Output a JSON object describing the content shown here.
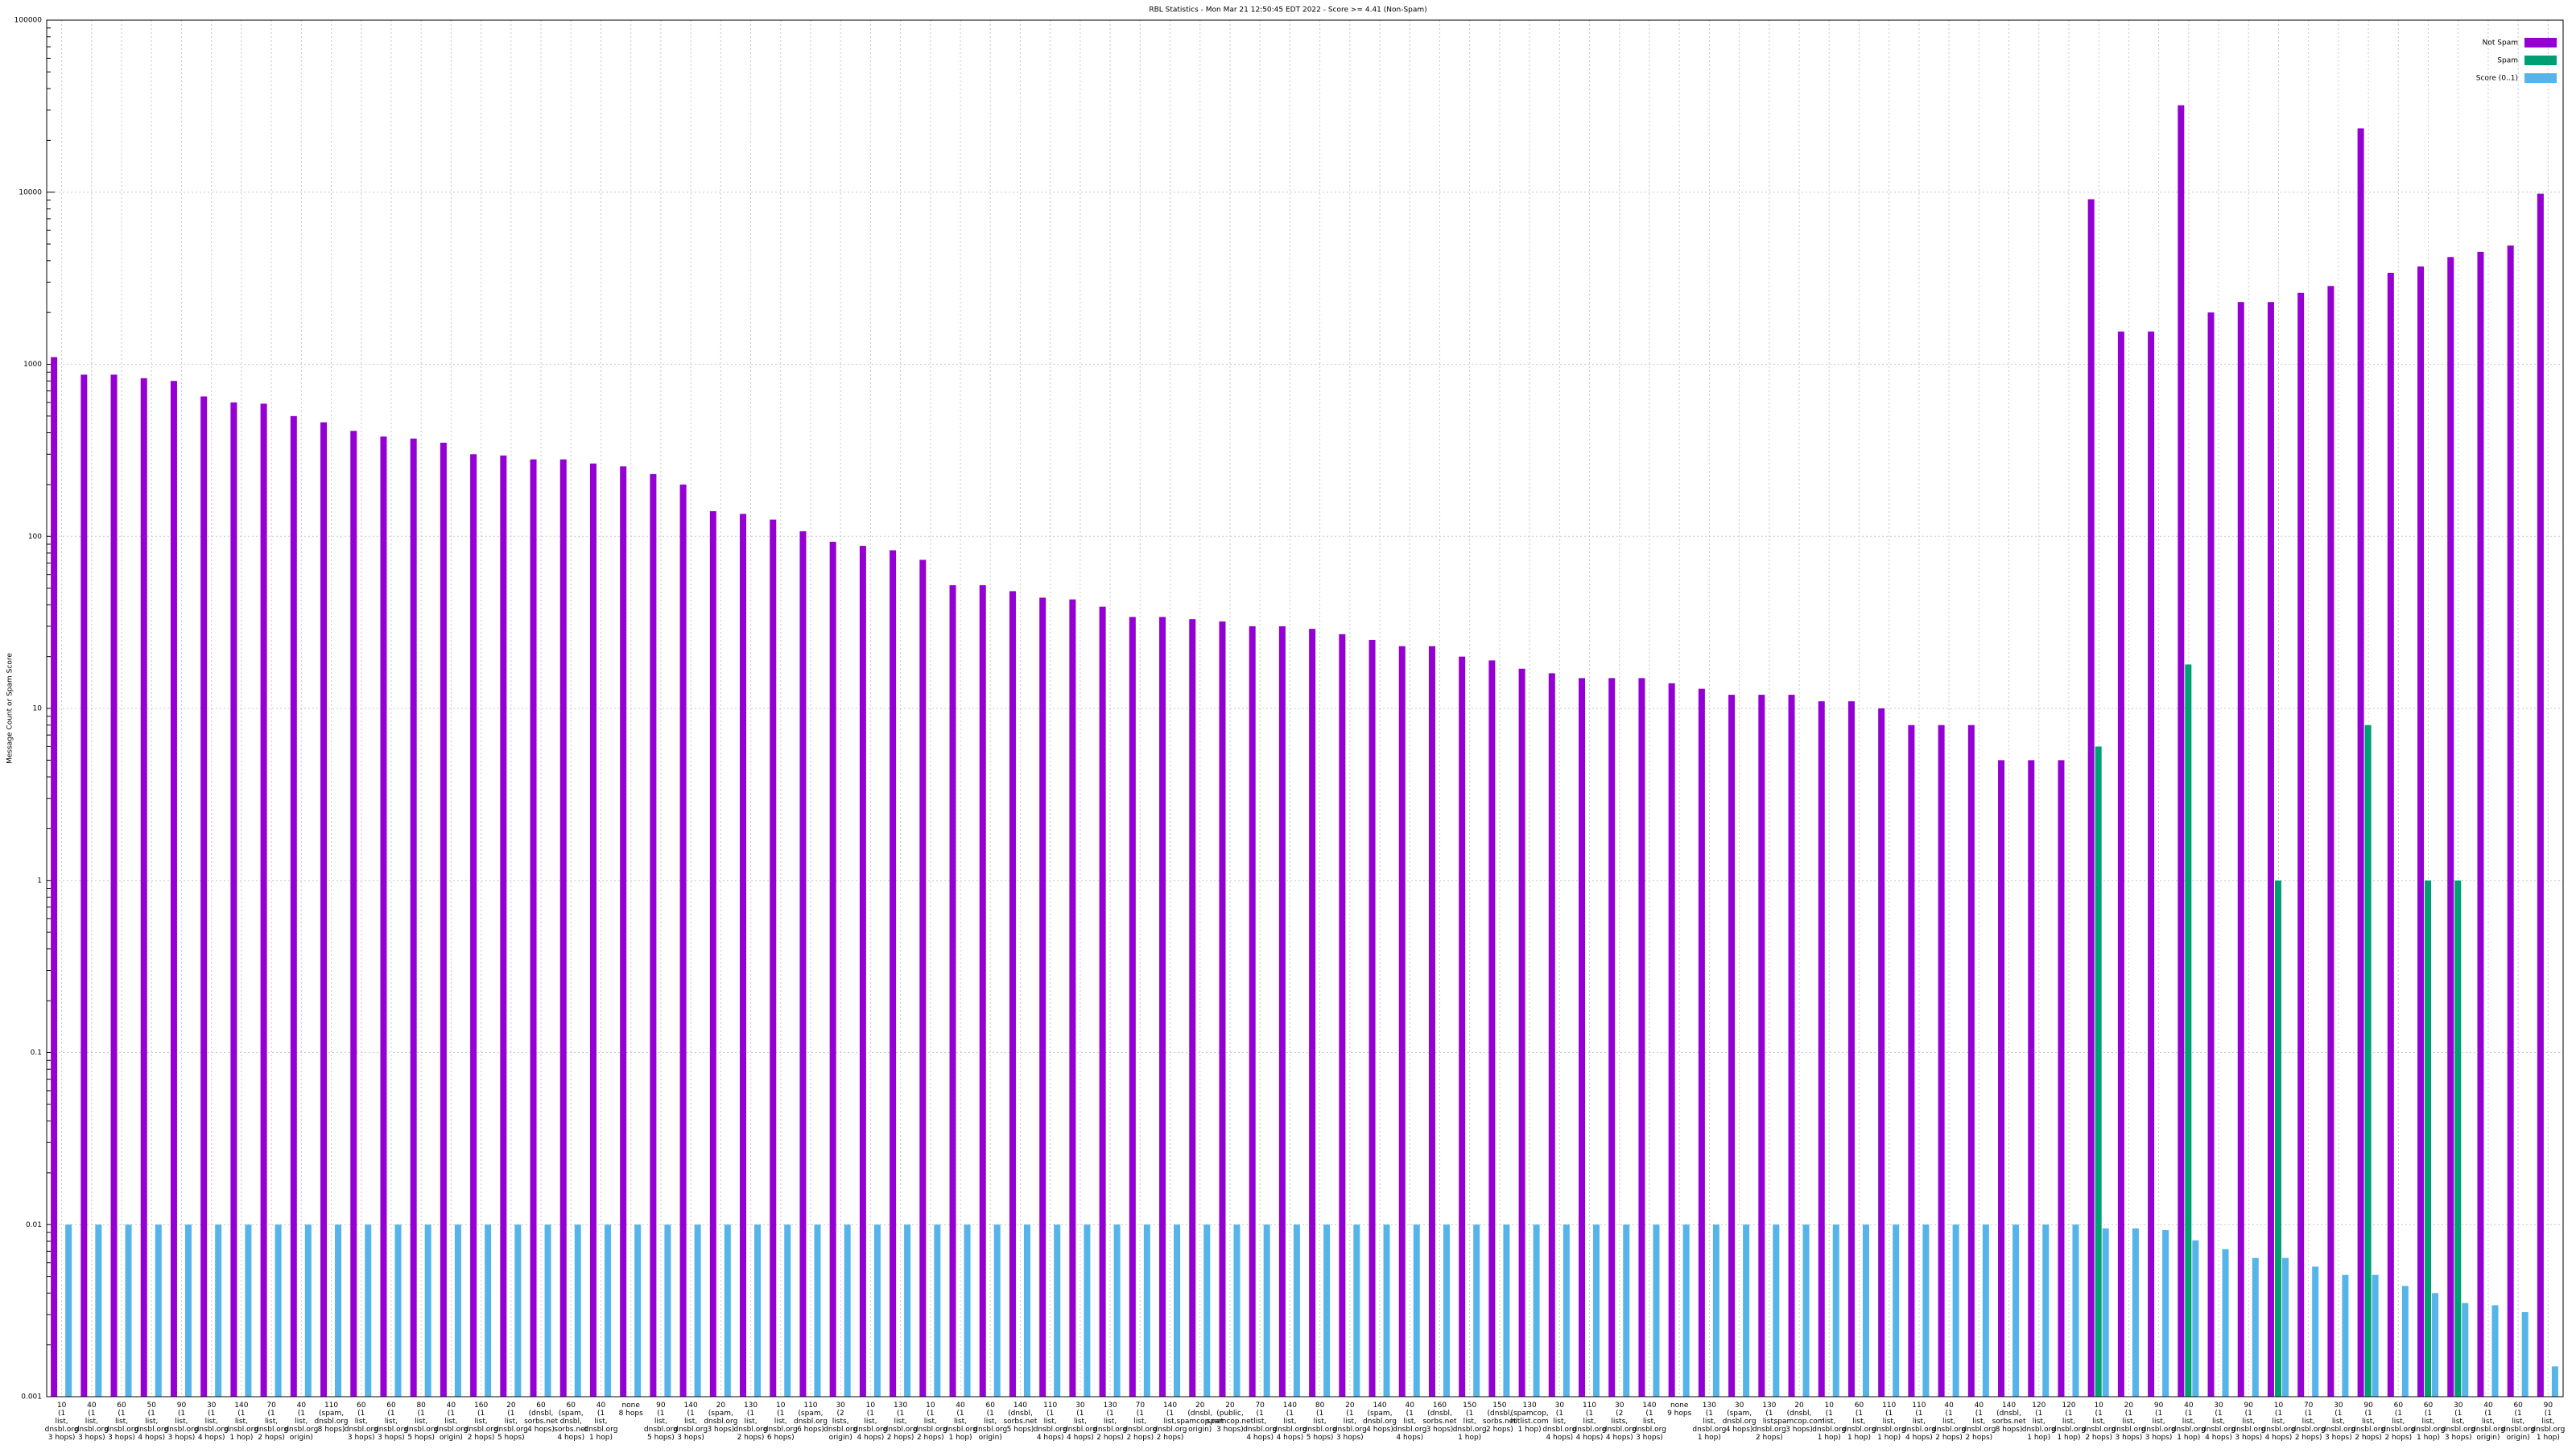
{
  "chart_data": {
    "type": "bar",
    "title": "RBL Statistics - Mon Mar 21 12:50:45 EDT 2022 - Score >= 4.41 (Non-Spam)",
    "y_label": "Message Count or Spam Score",
    "log_scale": true,
    "grid": true,
    "legend_position": "top-right",
    "ylim": [
      0.001,
      100000
    ],
    "yticks": [
      0.001,
      0.01,
      0.1,
      1,
      10,
      100,
      1000,
      10000,
      100000
    ],
    "categories": [
      "10 (1 list, dnsbl.org 3 hops)",
      "40 (1 list, dnsbl.org 3 hops)",
      "60 (1 list, dnsbl.org 3 hops)",
      "50 (1 list, dnsbl.org 4 hops)",
      "90 (1 list, dnsbl.org 3 hops)",
      "30 (1 list, dnsbl.org 4 hops)",
      "140 (1 list, dnsbl.org 1 hop)",
      "70 (1 list, dnsbl.org 2 hops)",
      "40 (1 list, dnsbl.org origin)",
      "110 (spam, dnsbl.org 8 hops)",
      "60 (1 list, dnsbl.org 3 hops)",
      "60 (1 list, dnsbl.org 3 hops)",
      "80 (1 list, dnsbl.org 5 hops)",
      "40 (1 list, dnsbl.org origin)",
      "160 (1 list, dnsbl.org 2 hops)",
      "20 (1 list, dnsbl.org 5 hops)",
      "60 (dnsbl, sorbs.net 4 hops)",
      "60 (spam, dnsbl, sorbs.net 4 hops)",
      "40 (1 list, dnsbl.org 1 hop)",
      "none 8 hops",
      "90 (1 list, dnsbl.org 5 hops)",
      "140 (1 list, dnsbl.org 3 hops)",
      "20 (spam, dnsbl.org 3 hops)",
      "130 (1 list, dnsbl.org 2 hops)",
      "10 (1 list, dnsbl.org 6 hops)",
      "110 (spam, dnsbl.org 6 hops)",
      "30 (2 lists, dnsbl.org origin)",
      "10 (1 list, dnsbl.org 4 hops)",
      "130 (1 list, dnsbl.org 2 hops)",
      "10 (1 list, dnsbl.org 2 hops)",
      "40 (1 list, dnsbl.org 1 hop)",
      "60 (1 list, dnsbl.org origin)",
      "140 (dnsbl, sorbs.net 5 hops)",
      "110 (1 list, dnsbl.org 4 hops)",
      "30 (1 list, dnsbl.org 4 hops)",
      "130 (1 list, dnsbl.org 2 hops)",
      "70 (1 list, dnsbl.org 2 hops)",
      "140 (1 list, dnsbl.org 2 hops)",
      "20 (dnsbl, spamcop.net origin)",
      "20 (public, spamcop.net 3 hops)",
      "70 (1 list, dnsbl.org 4 hops)",
      "140 (1 list, dnsbl.org 4 hops)",
      "80 (1 list, dnsbl.org 5 hops)",
      "20 (1 list, dnsbl.org 3 hops)",
      "140 (spam, dnsbl.org 4 hops)",
      "40 (1 list, dnsbl.org 4 hops)",
      "160 (dnsbl, sorbs.net 3 hops)",
      "150 (1 list, dnsbl.org 1 hop)",
      "150 (dnsbl, sorbs.net 2 hops)",
      "130 (spamcop, hitlist.com 1 hop)",
      "30 (1 list, dnsbl.org 4 hops)",
      "110 (1 list, dnsbl.org 4 hops)",
      "30 (2 lists, dnsbl.org 4 hops)",
      "140 (1 list, dnsbl.org 3 hops)",
      "none 9 hops",
      "130 (1 list, dnsbl.org 1 hop)",
      "30 (spam, dnsbl.org 4 hops)",
      "130 (1 list, dnsbl.org 2 hops)",
      "20 (dnsbl, spamcop.com 3 hops)",
      "10 (1 list, dnsbl.org 1 hop)",
      "60 (1 list, dnsbl.org 1 hop)",
      "110 (1 list, dnsbl.org 1 hop)",
      "110 (1 list, dnsbl.org 4 hops)",
      "40 (1 list, dnsbl.org 2 hops)",
      "40 (1 list, dnsbl.org 2 hops)",
      "140 (dnsbl, sorbs.net 8 hops)",
      "120 (1 list, dnsbl.org 1 hop)",
      "120 (1 list, dnsbl.org 1 hop)",
      "10 (1 list, dnsbl.org 2 hops)",
      "20 (1 list, dnsbl.org 3 hops)",
      "90 (1 list, dnsbl.org 3 hops)",
      "40 (1 list, dnsbl.org 1 hop)",
      "30 (1 list, dnsbl.org 4 hops)",
      "90 (1 list, dnsbl.org 3 hops)",
      "10 (1 list, dnsbl.org 4 hops)",
      "70 (1 list, dnsbl.org 2 hops)",
      "30 (1 list, dnsbl.org 3 hops)",
      "90 (1 list, dnsbl.org 2 hops)",
      "60 (1 list, dnsbl.org 2 hops)",
      "60 (1 list, dnsbl.org 1 hop)",
      "30 (1 list, dnsbl.org 3 hops)",
      "40 (1 list, dnsbl.org origin)",
      "60 (1 list, dnsbl.org origin)",
      "90 (1 list, dnsbl.org 1 hop)"
    ],
    "series": [
      {
        "name": "Not Spam",
        "color": "#9400d3",
        "values": [
          1100,
          870,
          870,
          830,
          800,
          650,
          600,
          590,
          500,
          460,
          410,
          380,
          370,
          350,
          300,
          295,
          280,
          280,
          265,
          255,
          230,
          200,
          140,
          135,
          125,
          107,
          93,
          88,
          83,
          73,
          52,
          52,
          48,
          44,
          43,
          39,
          34,
          34,
          33,
          32,
          30,
          30,
          29,
          27,
          25,
          23,
          23,
          20,
          19,
          17,
          16,
          15,
          15,
          15,
          14,
          13,
          12,
          12,
          12,
          11,
          11,
          10,
          8,
          8,
          8,
          5,
          5,
          5,
          9100,
          1550,
          1550,
          32000,
          2000,
          2300,
          2300,
          2600,
          2850,
          23500,
          3400,
          3700,
          4200,
          4500,
          4900,
          9800
        ]
      },
      {
        "name": "Spam",
        "color": "#009e73",
        "values": [
          0,
          0,
          0,
          0,
          0,
          0,
          0,
          0,
          0,
          0,
          0,
          0,
          0,
          0,
          0,
          0,
          0,
          0,
          0,
          0,
          0,
          0,
          0,
          0,
          0,
          0,
          0,
          0,
          0,
          0,
          0,
          0,
          0,
          0,
          0,
          0,
          0,
          0,
          0,
          0,
          0,
          0,
          0,
          0,
          0,
          0,
          0,
          0,
          0,
          0,
          0,
          0,
          0,
          0,
          0,
          0,
          0,
          0,
          0,
          0,
          0,
          0,
          0,
          0,
          0,
          0,
          0,
          0,
          6,
          0,
          0,
          18,
          0,
          0,
          1,
          0,
          0,
          8,
          0,
          1,
          1,
          0,
          0,
          0
        ]
      },
      {
        "name": "Score (0..1)",
        "color": "#56b4e9",
        "values": [
          0.01,
          0.01,
          0.01,
          0.01,
          0.01,
          0.01,
          0.01,
          0.01,
          0.01,
          0.01,
          0.01,
          0.01,
          0.01,
          0.01,
          0.01,
          0.01,
          0.01,
          0.01,
          0.01,
          0.01,
          0.01,
          0.01,
          0.01,
          0.01,
          0.01,
          0.01,
          0.01,
          0.01,
          0.01,
          0.01,
          0.01,
          0.01,
          0.01,
          0.01,
          0.01,
          0.01,
          0.01,
          0.01,
          0.01,
          0.01,
          0.01,
          0.01,
          0.01,
          0.01,
          0.01,
          0.01,
          0.01,
          0.01,
          0.01,
          0.01,
          0.01,
          0.01,
          0.01,
          0.01,
          0.01,
          0.01,
          0.01,
          0.01,
          0.01,
          0.01,
          0.01,
          0.01,
          0.01,
          0.01,
          0.01,
          0.01,
          0.01,
          0.01,
          0.0095,
          0.0095,
          0.0093,
          0.0081,
          0.0072,
          0.0064,
          0.0064,
          0.0057,
          0.0051,
          0.0051,
          0.0044,
          0.004,
          0.0035,
          0.0034,
          0.0031,
          0.0015
        ]
      }
    ]
  }
}
